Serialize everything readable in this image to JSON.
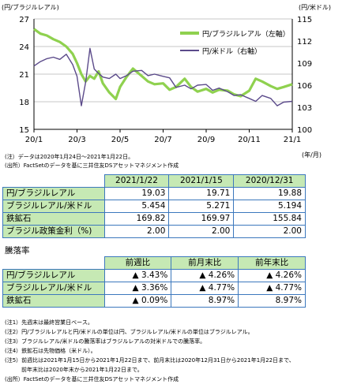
{
  "chart_data": {
    "type": "line",
    "y_left_label": "(円/ブラジルレアル)",
    "y_right_label": "(円/米ドル)",
    "x_unit_label": "(年/月)",
    "x_ticks": [
      "20/1",
      "20/3",
      "20/5",
      "20/7",
      "20/9",
      "20/11",
      "21/1"
    ],
    "y_left_ticks": [
      "27",
      "24",
      "21",
      "18",
      "15"
    ],
    "y_right_ticks": [
      "115",
      "112",
      "109",
      "106",
      "103",
      "100"
    ],
    "y_left_lim": [
      15,
      27
    ],
    "y_right_lim": [
      100,
      115
    ],
    "x_lim": [
      0,
      12
    ],
    "grid": "horizontal",
    "legend_position": "top-right",
    "series": [
      {
        "name": "円/ブラジルレアル（左軸）",
        "axis": "left",
        "color": "#8fd14f",
        "x": [
          0,
          0.3,
          0.6,
          0.9,
          1.2,
          1.5,
          1.8,
          2.0,
          2.2,
          2.4,
          2.6,
          2.8,
          3.0,
          3.2,
          3.5,
          3.8,
          4.0,
          4.3,
          4.6,
          5.0,
          5.3,
          5.6,
          6.0,
          6.3,
          6.6,
          7.0,
          7.3,
          7.6,
          8.0,
          8.3,
          8.6,
          9.0,
          9.3,
          9.6,
          10.0,
          10.3,
          10.6,
          11.0,
          11.3,
          11.6,
          12.0
        ],
        "y": [
          25.9,
          25.4,
          25.2,
          24.8,
          24.5,
          24.0,
          23.2,
          22.2,
          21.0,
          20.2,
          20.8,
          20.5,
          21.3,
          20.0,
          19.0,
          18.3,
          19.6,
          20.7,
          21.6,
          20.8,
          20.2,
          19.9,
          20.0,
          19.3,
          19.6,
          20.5,
          19.6,
          19.1,
          19.4,
          19.0,
          19.3,
          19.2,
          18.8,
          18.6,
          19.2,
          20.5,
          20.2,
          19.7,
          19.4,
          19.6,
          19.9
        ]
      },
      {
        "name": "円/米ドル（右軸）",
        "axis": "right",
        "color": "#5b4a8a",
        "x": [
          0,
          0.3,
          0.6,
          0.9,
          1.2,
          1.5,
          1.8,
          2.0,
          2.2,
          2.4,
          2.6,
          2.8,
          3.0,
          3.2,
          3.5,
          3.8,
          4.0,
          4.3,
          4.6,
          5.0,
          5.3,
          5.6,
          6.0,
          6.3,
          6.6,
          7.0,
          7.3,
          7.6,
          8.0,
          8.3,
          8.6,
          9.0,
          9.3,
          9.6,
          10.0,
          10.3,
          10.6,
          11.0,
          11.3,
          11.6,
          12.0
        ],
        "y": [
          108.6,
          109.2,
          109.6,
          109.8,
          109.5,
          110.2,
          108.8,
          107.2,
          103.2,
          106.4,
          111.0,
          108.2,
          107.6,
          107.1,
          106.9,
          107.5,
          106.9,
          107.3,
          107.9,
          108.0,
          107.3,
          107.5,
          107.2,
          107.0,
          105.7,
          106.0,
          105.5,
          106.0,
          106.1,
          105.3,
          105.6,
          105.1,
          104.6,
          104.7,
          104.2,
          103.8,
          104.6,
          104.2,
          103.2,
          103.7,
          103.8
        ]
      }
    ]
  },
  "notes": {
    "line1": "(注）データは2020年1月24日～2021年1月22日。",
    "line2": "(出所）FactSetのデータを基に三井住友DSアセットマネジメント作成"
  },
  "table1": {
    "headers": [
      "2021/1/22",
      "2021/1/15",
      "2020/12/31"
    ],
    "rows": [
      {
        "label": "円/ブラジルレアル",
        "values": [
          "19.03",
          "19.71",
          "19.88"
        ]
      },
      {
        "label": "ブラジルレアル/米ドル",
        "values": [
          "5.454",
          "5.271",
          "5.194"
        ]
      },
      {
        "label": "鉄鉱石",
        "values": [
          "169.82",
          "169.97",
          "155.84"
        ]
      },
      {
        "label": "ブラジル政策金利（%)",
        "values": [
          "2.00",
          "2.00",
          "2.00"
        ]
      }
    ]
  },
  "table2": {
    "title": "騰落率",
    "headers": [
      "前週比",
      "前月末比",
      "前年末比"
    ],
    "rows": [
      {
        "label": "円/ブラジルレアル",
        "values": [
          "▲ 3.43%",
          "▲ 4.26%",
          "▲ 4.26%"
        ]
      },
      {
        "label": "ブラジルレアル/米ドル",
        "values": [
          "▲ 3.36%",
          "▲ 4.77%",
          "▲ 4.77%"
        ]
      },
      {
        "label": "鉄鉱石",
        "values": [
          "▲ 0.09%",
          "8.97%",
          "8.97%"
        ]
      }
    ]
  },
  "footnotes": [
    "(注1）先週末は最終営業日ベース。",
    "(注2）円/ブラジルレアルと円/米ドルの単位は円、ブラジルレアル/米ドルの単位はブラジルレアル。",
    "(注3）ブラジルレアル/米ドルの騰落率はブラジルレアルの対米ドルでの騰落率。",
    "(注4）鉄鉱石は先物価格（米ドル）。",
    "(注5）前週比は2021年1月15日から2021年1月22日まで、前月末比は2020年12月31日から2021年1月22日まで、",
    "　　　前年末比は2020年末から2021年1月22日まで。",
    "(出所）FactSetのデータを基に三井住友DSアセットマネジメント作成"
  ]
}
